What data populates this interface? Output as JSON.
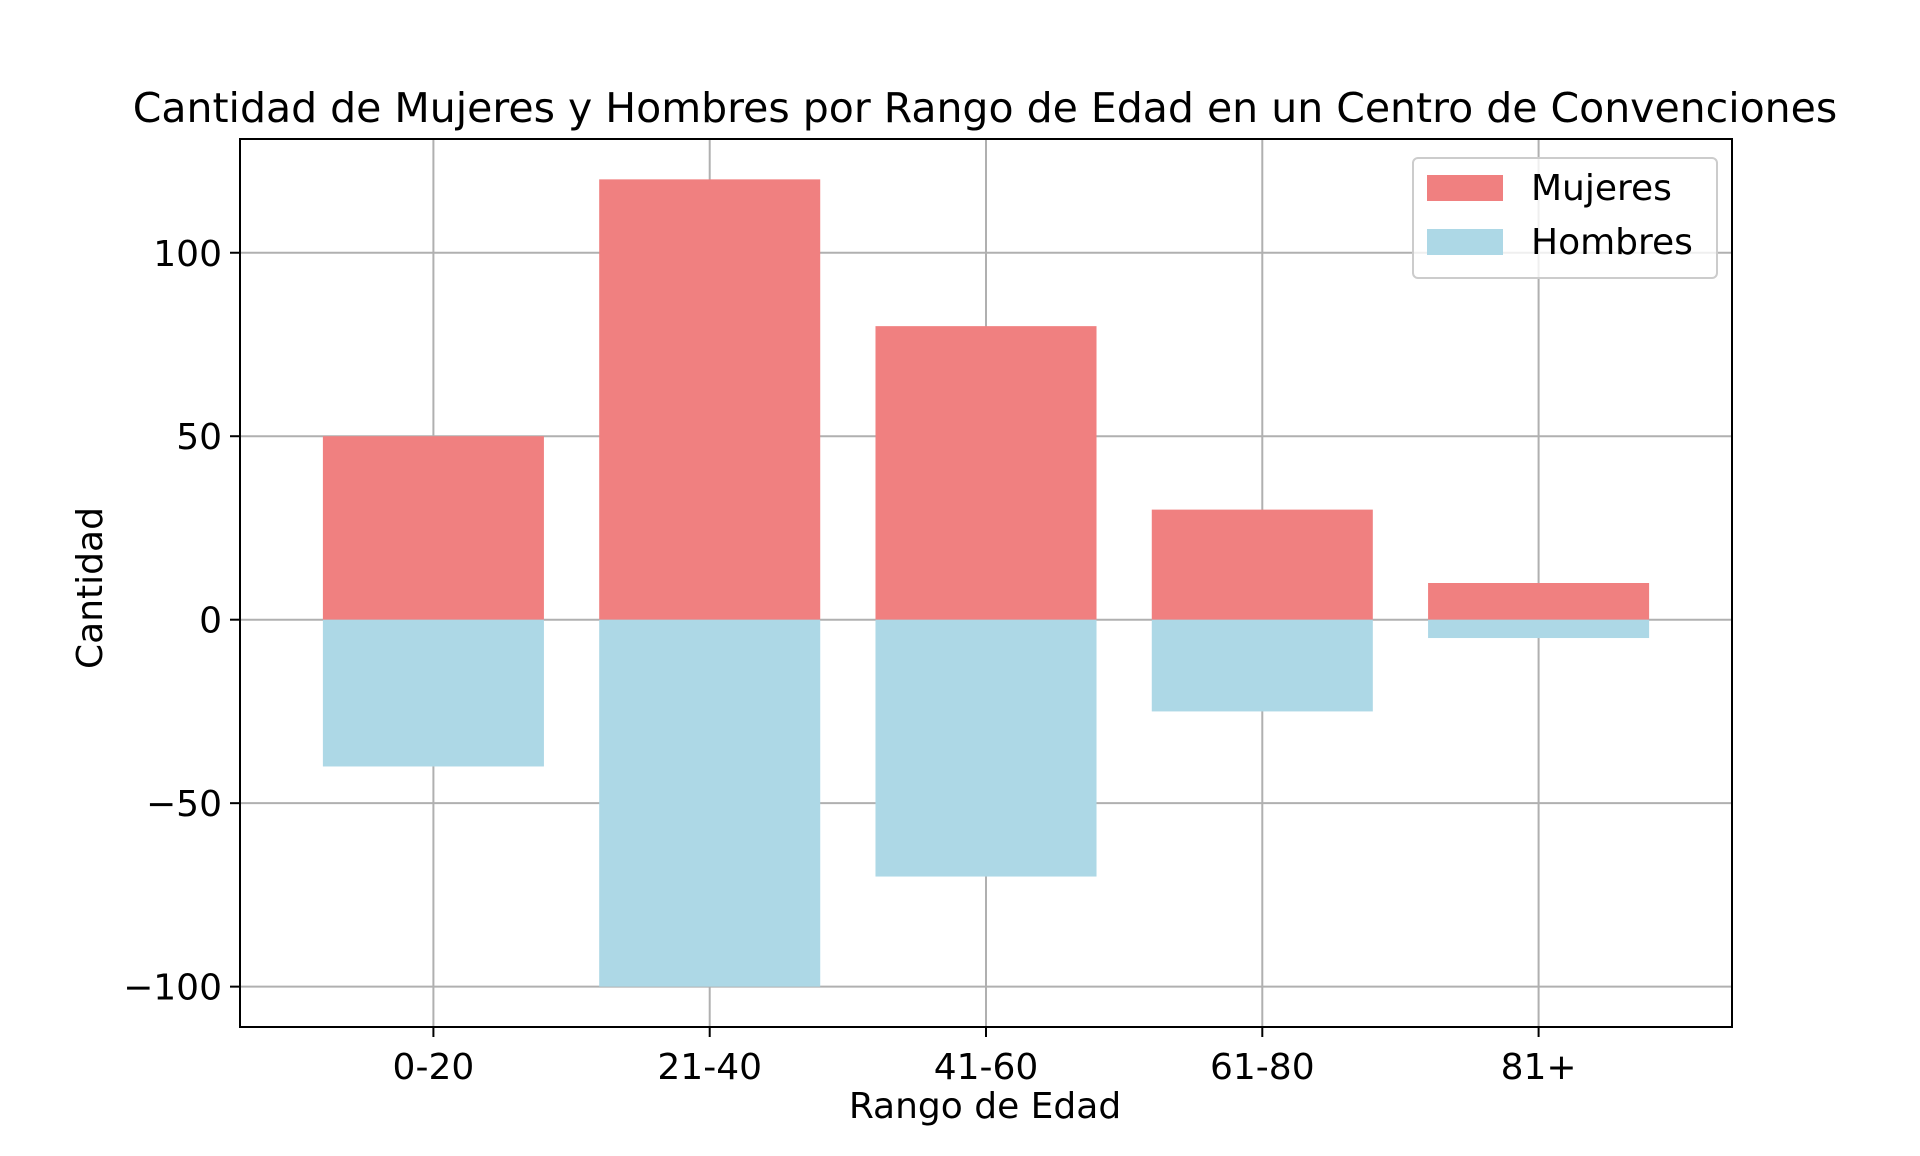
{
  "chart_data": {
    "type": "bar",
    "title": "Cantidad de Mujeres y Hombres por Rango de Edad en un Centro de Convenciones",
    "xlabel": "Rango de Edad",
    "ylabel": "Cantidad",
    "categories": [
      "0-20",
      "21-40",
      "41-60",
      "61-80",
      "81+"
    ],
    "series": [
      {
        "name": "Mujeres",
        "values": [
          50,
          120,
          80,
          30,
          10
        ],
        "color": "#f08080"
      },
      {
        "name": "Hombres",
        "values": [
          -40,
          -100,
          -70,
          -25,
          -5
        ],
        "color": "#add8e6"
      }
    ],
    "ylim": [
      -111,
      131
    ],
    "yticks": [
      -100,
      -50,
      0,
      50,
      100
    ],
    "ytick_labels": [
      "−100",
      "−50",
      "0",
      "50",
      "100"
    ],
    "grid": true,
    "legend_position": "top-right"
  }
}
